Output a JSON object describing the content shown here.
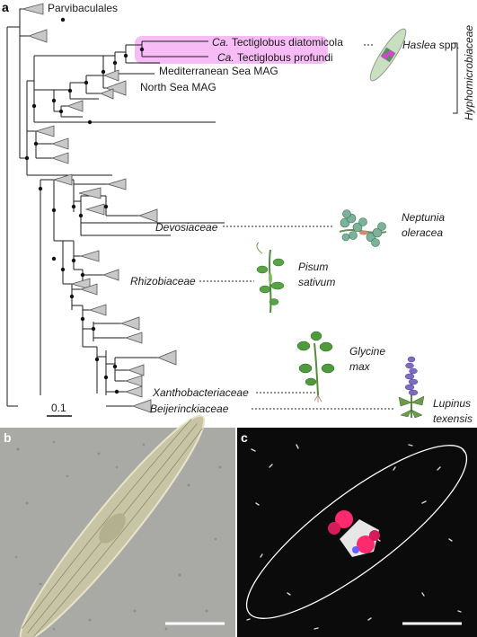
{
  "panels": {
    "a": "a",
    "b": "b",
    "c": "c"
  },
  "tree": {
    "outgroup": "Parvibaculales",
    "tectiglobus": [
      {
        "prefix": "Ca.",
        "name": "Tectiglobus diatomicola"
      },
      {
        "prefix": "Ca.",
        "name": "Tectiglobus profundi"
      }
    ],
    "mags": [
      "Mediterranean Sea MAG",
      "North Sea MAG"
    ],
    "families": [
      "Devosiaceae",
      "Rhizobiaceae",
      "Xanthobacteriaceae",
      "Beijerinckiaceae"
    ],
    "order_label": "Hyphomicrobiaceae",
    "scale_bar": "0.1",
    "highlight_color": "#ee66ee"
  },
  "hosts": {
    "diatom": {
      "genus": "Haslea",
      "suffix": "spp."
    },
    "neptunia": [
      "Neptunia",
      "oleracea"
    ],
    "pisum": [
      "Pisum",
      "sativum"
    ],
    "glycine": [
      "Glycine",
      "max"
    ],
    "lupinus": [
      "Lupinus",
      "texensis"
    ]
  },
  "micrographs": {
    "b_background": "#a9aaa6",
    "c_background": "#0b0b0b",
    "c_signal_color": "#ff2a6e"
  }
}
